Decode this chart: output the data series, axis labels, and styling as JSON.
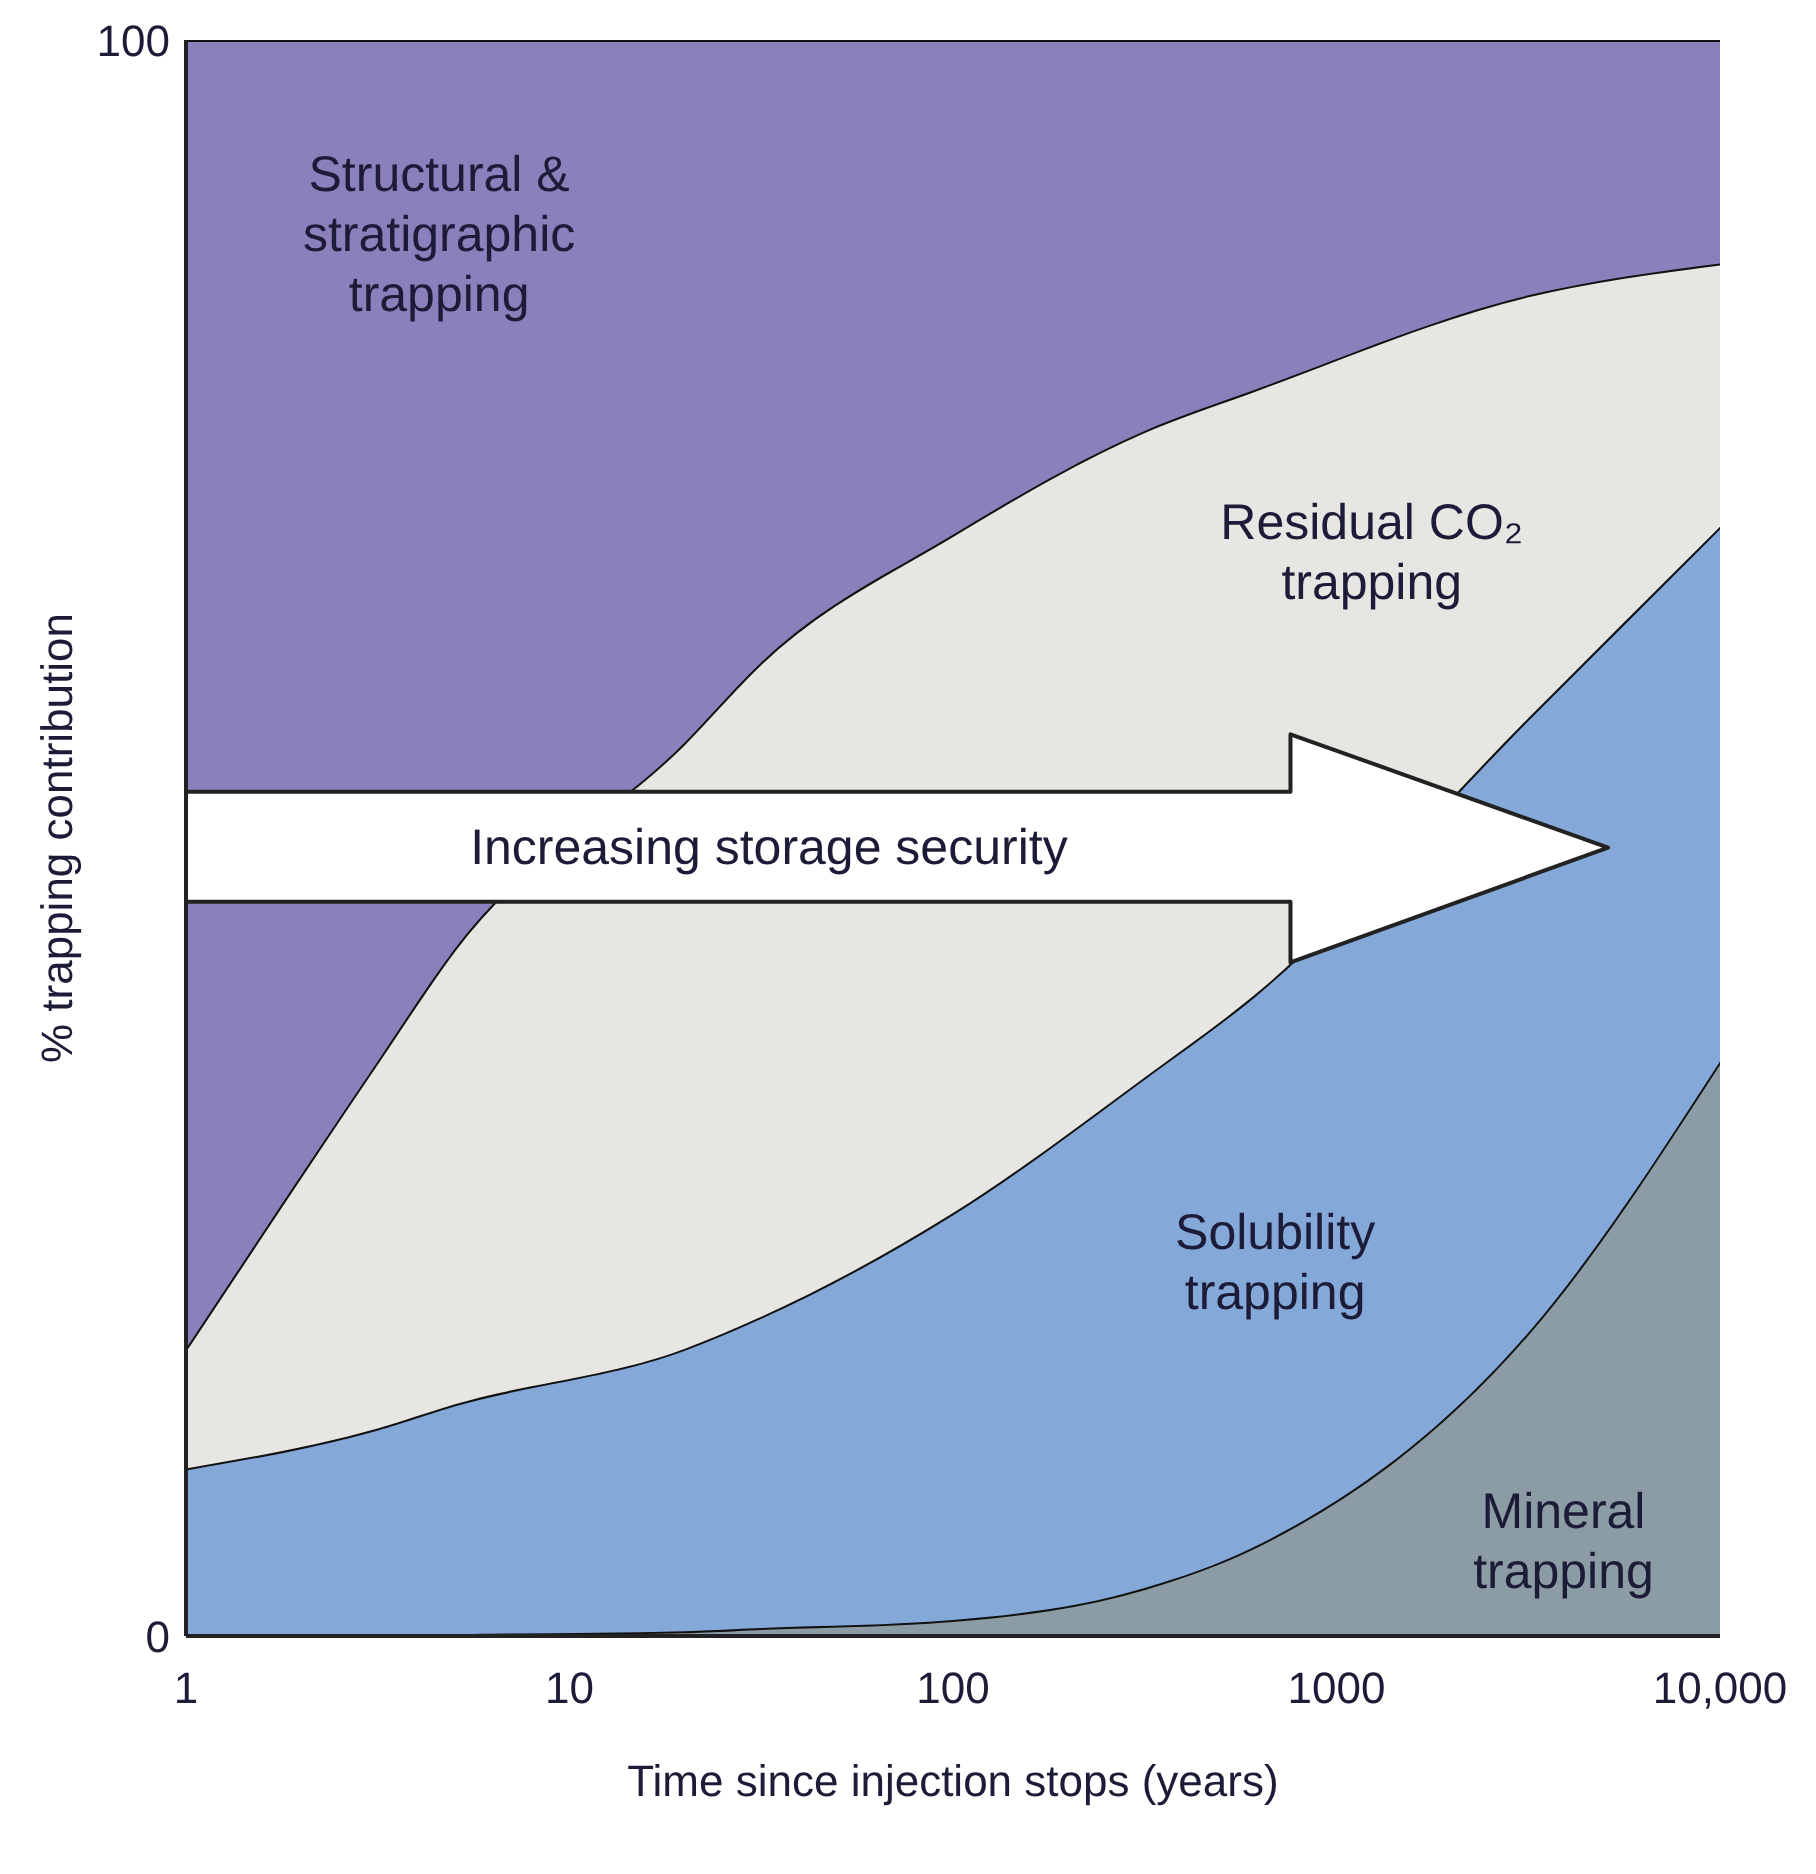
{
  "chart_data": {
    "type": "area",
    "stacked": true,
    "xlabel": "Time since injection stops (years)",
    "ylabel": "% trapping contribution",
    "x": [
      1,
      3.16,
      5,
      20,
      31.6,
      100,
      316,
      600,
      3162,
      10000
    ],
    "log": "x",
    "xlim": [
      1,
      10000
    ],
    "xticks": [
      1,
      10,
      100,
      1000,
      {
        "value": 10000,
        "label": "10,000"
      }
    ],
    "ylim": [
      0,
      100
    ],
    "yticks": [
      0,
      100
    ],
    "grid": false,
    "legend": false,
    "series": [
      {
        "name": "Mineral trapping",
        "color": "#8c9ca4",
        "values": [
          0,
          0,
          0.1,
          0.3,
          0.5,
          1,
          3,
          5.5,
          19,
          36
        ]
      },
      {
        "name": "Solubility trapping",
        "color": "#84a8d8",
        "values": [
          10.5,
          13,
          14.4,
          17.7,
          19.5,
          25.5,
          32,
          34.5,
          38.5,
          33.5
        ]
      },
      {
        "name": "Residual CO₂ trapping",
        "color": "#e8e6e2",
        "values": [
          7.5,
          23,
          28.5,
          38,
          41,
          42.5,
          40.5,
          38,
          26.5,
          16.5
        ]
      },
      {
        "name": "Structural & stratigraphic trapping",
        "color": "#8c80bc",
        "values": [
          82,
          64,
          57,
          44,
          39,
          31,
          24.5,
          22,
          16,
          14
        ]
      }
    ],
    "annotations": [
      "Increasing storage security"
    ]
  }
}
